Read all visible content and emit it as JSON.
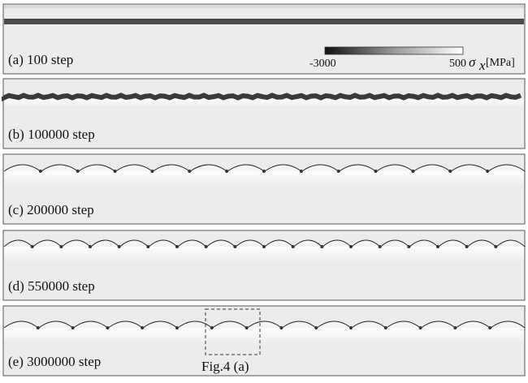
{
  "panels": [
    {
      "label": "(a) 100 step"
    },
    {
      "label": "(b) 100000 step"
    },
    {
      "label": "(c) 200000 step"
    },
    {
      "label": "(d) 550000 step"
    },
    {
      "label": "(e) 3000000 step"
    }
  ],
  "colorbar": {
    "min": -3000,
    "max": 500,
    "symbol": "σ",
    "subscript": "x",
    "unit": "[MPa]"
  },
  "annotation": "Fig.4 (a)"
}
